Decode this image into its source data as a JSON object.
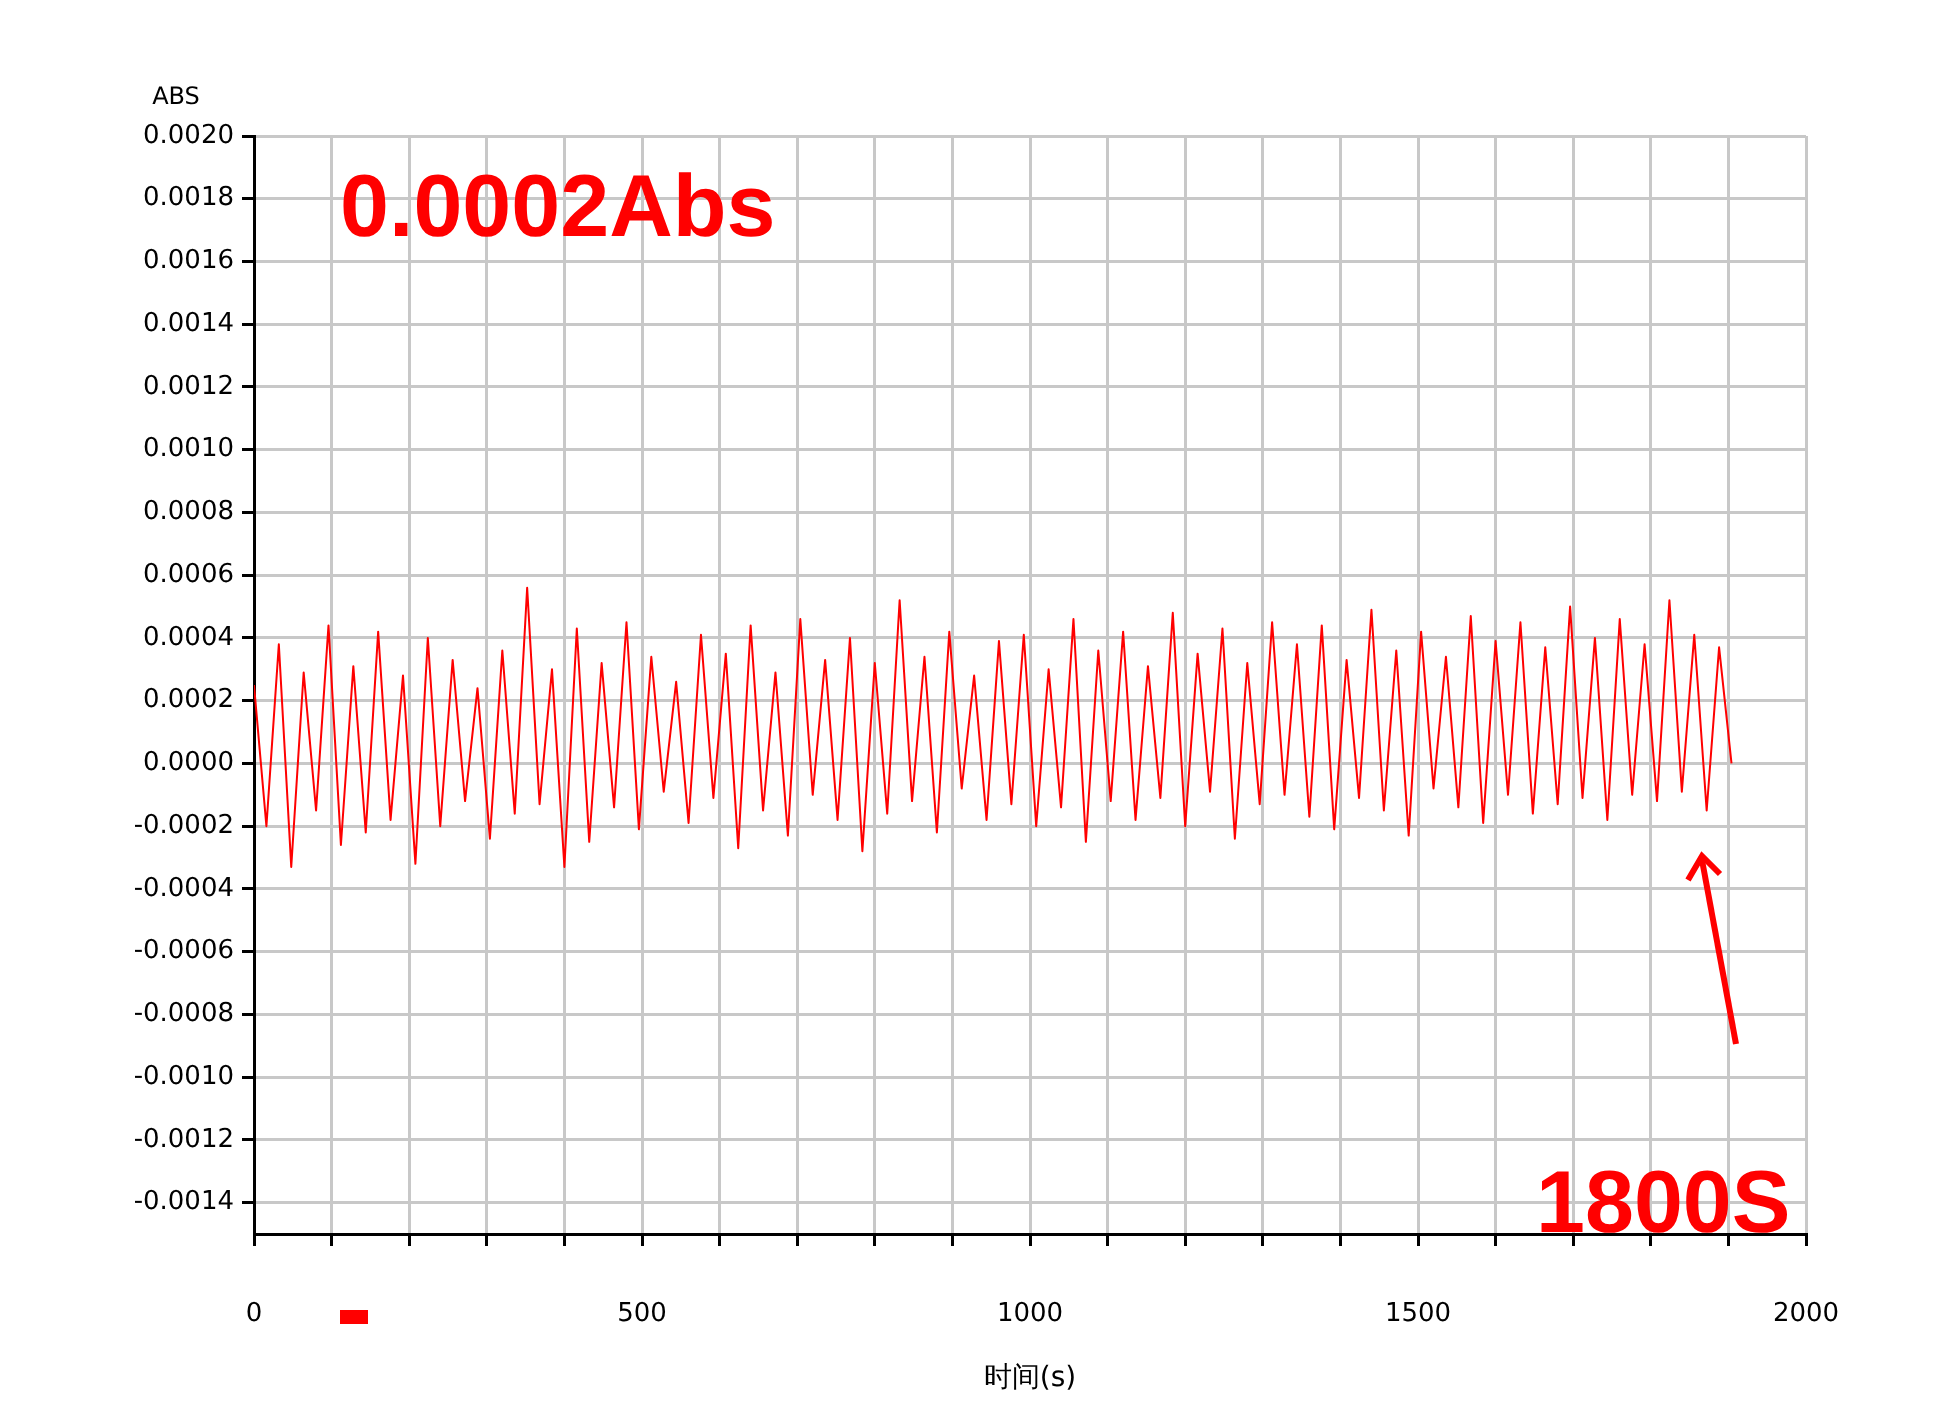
{
  "chart_data": {
    "type": "line",
    "xlabel": "时间(s)",
    "ylabel": "ABS",
    "annotations": [
      "0.0002Abs",
      "1800S"
    ],
    "xlim": [
      0,
      2000
    ],
    "xticks": [
      0,
      {
        "value": 100,
        "label": null
      },
      {
        "value": 200,
        "label": null
      },
      {
        "value": 300,
        "label": null
      },
      {
        "value": 400,
        "label": null
      },
      500,
      {
        "value": 600,
        "label": null
      },
      {
        "value": 700,
        "label": null
      },
      {
        "value": 800,
        "label": null
      },
      {
        "value": 900,
        "label": null
      },
      1000,
      {
        "value": 1100,
        "label": null
      },
      {
        "value": 1200,
        "label": null
      },
      {
        "value": 1300,
        "label": null
      },
      {
        "value": 1400,
        "label": null
      },
      1500,
      {
        "value": 1600,
        "label": null
      },
      {
        "value": 1700,
        "label": null
      },
      {
        "value": 1800,
        "label": null
      },
      {
        "value": 1900,
        "label": null
      },
      2000
    ],
    "ylim": [
      -0.0015,
      0.002
    ],
    "yticks": [
      {
        "value": -0.0014,
        "label": "-0.0014"
      },
      {
        "value": -0.0012,
        "label": "-0.0012"
      },
      {
        "value": -0.001,
        "label": "-0.0010"
      },
      {
        "value": -0.0008,
        "label": "-0.0008"
      },
      {
        "value": -0.0006,
        "label": "-0.0006"
      },
      {
        "value": -0.0004,
        "label": "-0.0004"
      },
      {
        "value": -0.0002,
        "label": "-0.0002"
      },
      {
        "value": 0,
        "label": "0.0000"
      },
      {
        "value": 0.0002,
        "label": "0.0002"
      },
      {
        "value": 0.0004,
        "label": "0.0004"
      },
      {
        "value": 0.0006,
        "label": "0.0006"
      },
      {
        "value": 0.0008,
        "label": "0.0008"
      },
      {
        "value": 0.001,
        "label": "0.0010"
      },
      {
        "value": 0.0012,
        "label": "0.0012"
      },
      {
        "value": 0.0014,
        "label": "0.0014"
      },
      {
        "value": 0.0016,
        "label": "0.0016"
      },
      {
        "value": 0.0018,
        "label": "0.0018"
      },
      {
        "value": 0.002,
        "label": "0.0020"
      }
    ],
    "grid": true,
    "legend": false,
    "marker": "none",
    "line_style": "solid",
    "series": [
      {
        "color": "#ff0000",
        "x": [
          0,
          16,
          32,
          48,
          64,
          80,
          96,
          112,
          128,
          144,
          160,
          176,
          192,
          208,
          224,
          240,
          256,
          272,
          288,
          304,
          320,
          336,
          352,
          368,
          384,
          400,
          416,
          432,
          448,
          464,
          480,
          496,
          512,
          528,
          544,
          560,
          576,
          592,
          608,
          624,
          640,
          656,
          672,
          688,
          704,
          720,
          736,
          752,
          768,
          784,
          800,
          816,
          832,
          848,
          864,
          880,
          896,
          912,
          928,
          944,
          960,
          976,
          992,
          1008,
          1024,
          1040,
          1056,
          1072,
          1088,
          1104,
          1120,
          1136,
          1152,
          1168,
          1184,
          1200,
          1216,
          1232,
          1248,
          1264,
          1280,
          1296,
          1312,
          1328,
          1344,
          1360,
          1376,
          1392,
          1408,
          1424,
          1440,
          1456,
          1472,
          1488,
          1504,
          1520,
          1536,
          1552,
          1568,
          1584,
          1600,
          1616,
          1632,
          1648,
          1664,
          1680,
          1696,
          1712,
          1728,
          1744,
          1760,
          1776,
          1792,
          1808,
          1824,
          1840,
          1856,
          1872,
          1888,
          1904
        ],
        "values": [
          0.00025,
          -0.0002,
          0.00038,
          -0.00033,
          0.00029,
          -0.00015,
          0.00044,
          -0.00026,
          0.00031,
          -0.00022,
          0.00042,
          -0.00018,
          0.00028,
          -0.00032,
          0.0004,
          -0.0002,
          0.00033,
          -0.00012,
          0.00024,
          -0.00024,
          0.00036,
          -0.00016,
          0.00056,
          -0.00013,
          0.0003,
          -0.00033,
          0.00043,
          -0.00025,
          0.00032,
          -0.00014,
          0.00045,
          -0.00021,
          0.00034,
          -9e-05,
          0.00026,
          -0.00019,
          0.00041,
          -0.00011,
          0.00035,
          -0.00027,
          0.00044,
          -0.00015,
          0.00029,
          -0.00023,
          0.00046,
          -0.0001,
          0.00033,
          -0.00018,
          0.0004,
          -0.00028,
          0.00032,
          -0.00016,
          0.00052,
          -0.00012,
          0.00034,
          -0.00022,
          0.00042,
          -8e-05,
          0.00028,
          -0.00018,
          0.00039,
          -0.00013,
          0.00041,
          -0.0002,
          0.0003,
          -0.00014,
          0.00046,
          -0.00025,
          0.00036,
          -0.00012,
          0.00042,
          -0.00018,
          0.00031,
          -0.00011,
          0.00048,
          -0.0002,
          0.00035,
          -9e-05,
          0.00043,
          -0.00024,
          0.00032,
          -0.00013,
          0.00045,
          -0.0001,
          0.00038,
          -0.00017,
          0.00044,
          -0.00021,
          0.00033,
          -0.00011,
          0.00049,
          -0.00015,
          0.00036,
          -0.00023,
          0.00042,
          -8e-05,
          0.00034,
          -0.00014,
          0.00047,
          -0.00019,
          0.00039,
          -0.0001,
          0.00045,
          -0.00016,
          0.00037,
          -0.00013,
          0.0005,
          -0.00011,
          0.0004,
          -0.00018,
          0.00046,
          -0.0001,
          0.00038,
          -0.00012,
          0.00052,
          -9e-05,
          0.00041,
          -0.00015,
          0.00037,
          0
        ]
      }
    ]
  }
}
